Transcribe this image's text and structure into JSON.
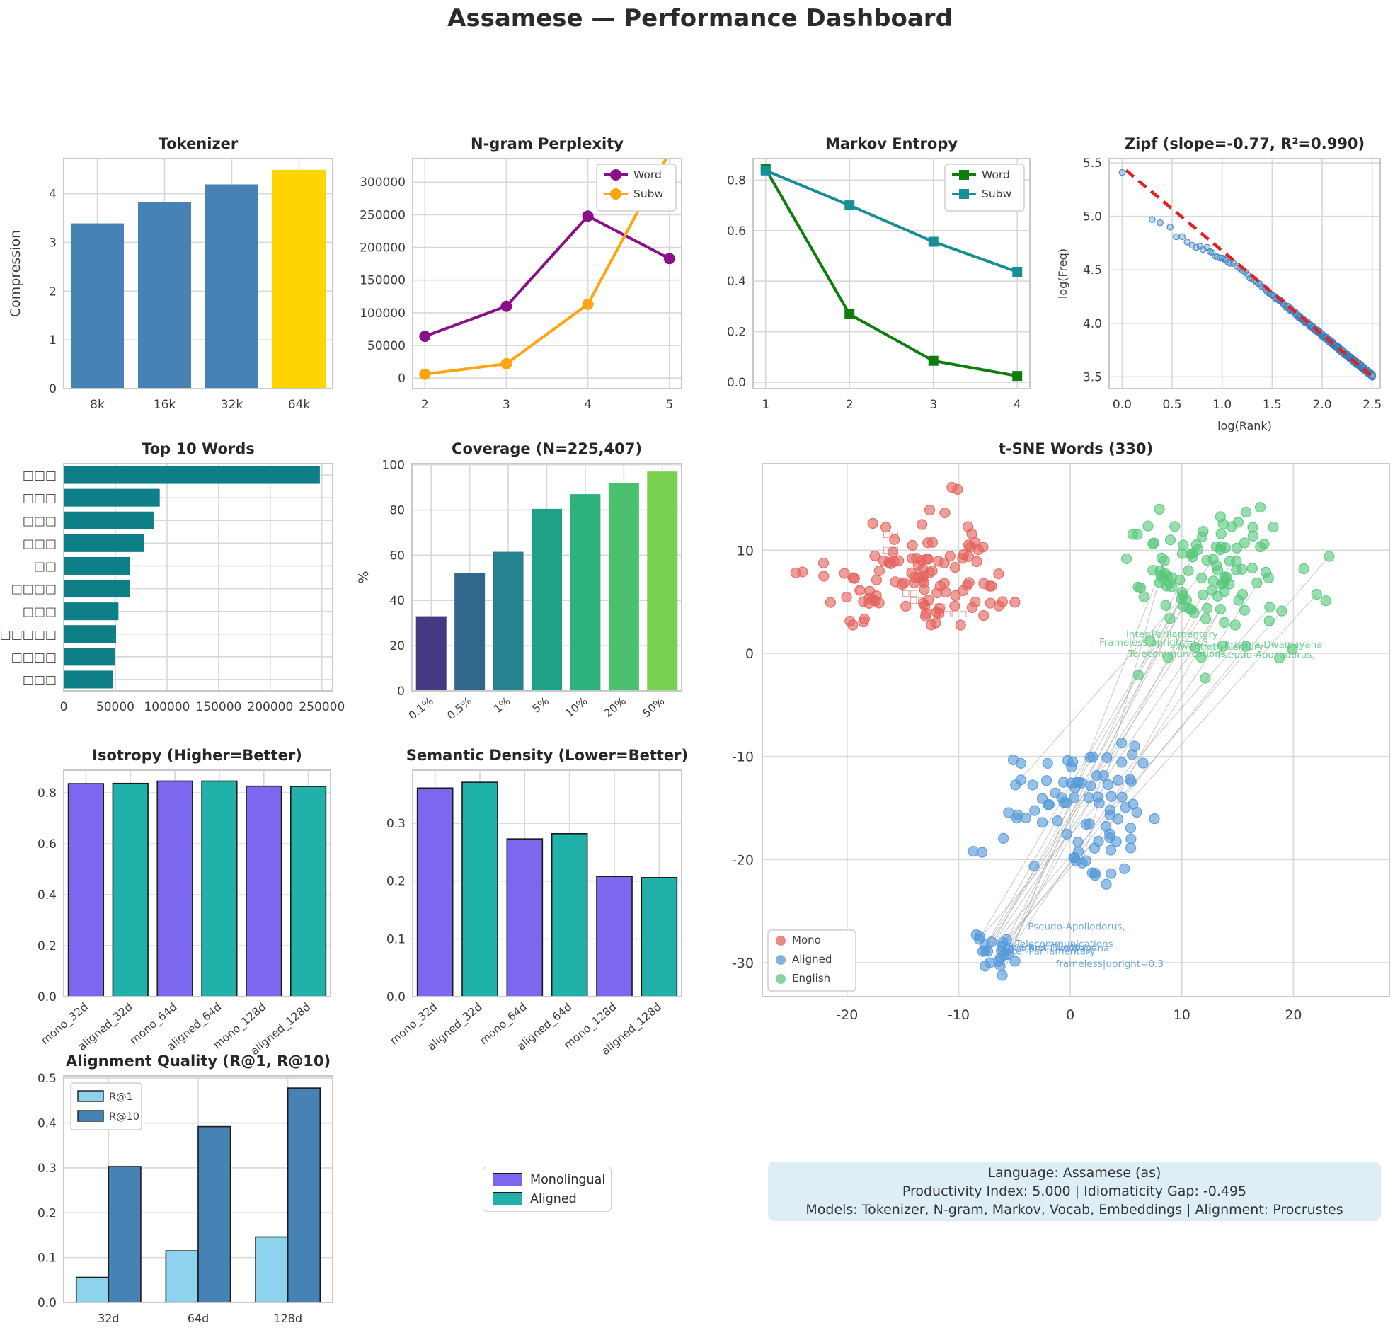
{
  "title": "Assamese — Performance Dashboard",
  "info_box": {
    "line1": "Language: Assamese (as)",
    "line2": "Productivity Index: 5.000  |  Idiomaticity Gap: -0.495",
    "line3": "Models: Tokenizer, N-gram, Markov, Vocab, Embeddings  |  Alignment: Procrustes"
  },
  "mid_legend": {
    "items": [
      {
        "label": "Monolingual",
        "color": "#7b68ee"
      },
      {
        "label": "Aligned",
        "color": "#20b2aa"
      }
    ]
  },
  "style": {
    "grid_color": "#d8d8d8",
    "frame_color": "#c9c9c9",
    "tick_color": "#3b3b3b",
    "title_color": "#262626",
    "info_bg": "#ddeef6"
  },
  "chart_data": [
    {
      "id": "tokenizer",
      "type": "bar",
      "title": "Tokenizer",
      "ylabel": "Compression",
      "categories": [
        "8k",
        "16k",
        "32k",
        "64k"
      ],
      "values": [
        3.39,
        3.82,
        4.19,
        4.49
      ],
      "bar_colors": [
        "#4682b4",
        "#4682b4",
        "#4682b4",
        "#ffd500"
      ],
      "ylim": [
        0,
        4.72
      ],
      "yticks": [
        0,
        1,
        2,
        3,
        4
      ],
      "yticklabels": [
        "0",
        "1",
        "2",
        "3",
        "4"
      ]
    },
    {
      "id": "ngram",
      "type": "line",
      "title": "N-gram Perplexity",
      "x": [
        2,
        3,
        4,
        5
      ],
      "xlim": [
        1.85,
        5.15
      ],
      "xticks": [
        2,
        3,
        4,
        5
      ],
      "xticklabels": [
        "2",
        "3",
        "4",
        "5"
      ],
      "ylim": [
        -16000,
        336000
      ],
      "yticks": [
        0,
        50000,
        100000,
        150000,
        200000,
        250000,
        300000
      ],
      "yticklabels": [
        "0",
        "50000",
        "100000",
        "150000",
        "200000",
        "250000",
        "300000"
      ],
      "series": [
        {
          "name": "Word",
          "color": "#8a0f8a",
          "marker": "circle",
          "values": [
            64000,
            110000,
            248000,
            183000
          ]
        },
        {
          "name": "Subw",
          "color": "#ffa510",
          "marker": "circle",
          "values": [
            6000,
            22000,
            113000,
            345000
          ]
        }
      ],
      "legend_pos": "top-right"
    },
    {
      "id": "markov",
      "type": "line",
      "title": "Markov Entropy",
      "x": [
        1,
        2,
        3,
        4
      ],
      "xlim": [
        0.85,
        4.15
      ],
      "xticks": [
        1,
        2,
        3,
        4
      ],
      "xticklabels": [
        "1",
        "2",
        "3",
        "4"
      ],
      "ylim": [
        -0.025,
        0.885
      ],
      "yticks": [
        0,
        0.2,
        0.4,
        0.6,
        0.8
      ],
      "yticklabels": [
        "0.0",
        "0.2",
        "0.4",
        "0.6",
        "0.8"
      ],
      "series": [
        {
          "name": "Word",
          "color": "#0e7c0e",
          "marker": "square",
          "values": [
            0.844,
            0.269,
            0.085,
            0.025
          ]
        },
        {
          "name": "Subw",
          "color": "#178f96",
          "marker": "square",
          "values": [
            0.838,
            0.7,
            0.556,
            0.437
          ]
        }
      ],
      "legend_pos": "top-right"
    },
    {
      "id": "zipf",
      "type": "zipf",
      "title": "Zipf (slope=-0.77, R²=0.990)",
      "xlabel": "log(Rank)",
      "ylabel": "log(Freq)",
      "xlim": [
        -0.13,
        2.58
      ],
      "ylim": [
        3.39,
        5.54
      ],
      "xticks": [
        0,
        0.5,
        1,
        1.5,
        2,
        2.5
      ],
      "xticklabels": [
        "0.0",
        "0.5",
        "1.0",
        "1.5",
        "2.0",
        "2.5"
      ],
      "yticks": [
        3.5,
        4,
        4.5,
        5,
        5.5
      ],
      "yticklabels": [
        "3.5",
        "4.0",
        "4.5",
        "5.0",
        "5.5"
      ],
      "point_color": "#74add6",
      "point_edge": "#3a7ab8",
      "fit_color": "#e62020",
      "fit": {
        "x1": 0.04,
        "y1": 5.43,
        "x2": 2.52,
        "y2": 3.49
      },
      "head_points": [
        [
          0,
          5.41
        ],
        [
          0.3,
          4.97
        ],
        [
          0.38,
          4.94
        ],
        [
          0.48,
          4.9
        ],
        [
          0.54,
          4.81
        ],
        [
          0.6,
          4.81
        ],
        [
          0.65,
          4.76
        ],
        [
          0.7,
          4.73
        ],
        [
          0.74,
          4.71
        ],
        [
          0.78,
          4.72
        ],
        [
          0.81,
          4.69
        ],
        [
          0.85,
          4.71
        ],
        [
          0.88,
          4.67
        ],
        [
          0.9,
          4.66
        ],
        [
          0.93,
          4.63
        ],
        [
          0.95,
          4.62
        ],
        [
          0.98,
          4.61
        ],
        [
          1.0,
          4.61
        ],
        [
          1.02,
          4.6
        ],
        [
          1.04,
          4.59
        ],
        [
          1.06,
          4.57
        ],
        [
          1.08,
          4.56
        ]
      ],
      "tail": {
        "from_rank": 13,
        "to_rank": 320,
        "intercept": 5.4,
        "slope": -0.755,
        "noise": 0.03,
        "seed": 11
      }
    },
    {
      "id": "top10",
      "type": "hbar",
      "title": "Top 10 Words",
      "categories": [
        "□□□",
        "□□□",
        "□□□",
        "□□□",
        "□□",
        "□□□□",
        "□□□",
        "□□□□□□",
        "□□□□",
        "□□□"
      ],
      "values": [
        248000,
        93000,
        87000,
        77500,
        64000,
        63800,
        53000,
        50700,
        49300,
        47500
      ],
      "bar_color": "#0e7f86",
      "xlim": [
        0,
        260400
      ],
      "xticks": [
        0,
        50000,
        100000,
        150000,
        200000,
        250000
      ],
      "xticklabels": [
        "0",
        "50000",
        "100000",
        "150000",
        "200000",
        "250000"
      ]
    },
    {
      "id": "coverage",
      "type": "bar",
      "title": "Coverage (N=225,407)",
      "ylabel": "%",
      "categories": [
        "0.1%",
        "0.5%",
        "1%",
        "5%",
        "10%",
        "20%",
        "50%"
      ],
      "values": [
        33,
        52,
        61.5,
        80.5,
        87,
        92,
        97
      ],
      "bar_colors": [
        "#443a83",
        "#31688e",
        "#26828e",
        "#1fa188",
        "#2db27d",
        "#4ac16d",
        "#7ad151"
      ],
      "ylim": [
        0,
        100.5
      ],
      "yticks": [
        0,
        20,
        40,
        60,
        80,
        100
      ],
      "yticklabels": [
        "0",
        "20",
        "40",
        "60",
        "80",
        "100"
      ],
      "rotate_labels": true
    },
    {
      "id": "tsne",
      "type": "tsne",
      "title": "t-SNE Words (330)",
      "xlim": [
        -27.6,
        28.6
      ],
      "ylim": [
        -33.3,
        18.4
      ],
      "xticks": [
        -20,
        -10,
        0,
        10,
        20
      ],
      "xticklabels": [
        "-20",
        "-10",
        "0",
        "10",
        "20"
      ],
      "yticks": [
        -30,
        -20,
        -10,
        0,
        10
      ],
      "yticklabels": [
        "-30",
        "-20",
        "-10",
        "0",
        "10"
      ],
      "legend": [
        {
          "label": "Mono",
          "color": "#e4635c"
        },
        {
          "label": "Aligned",
          "color": "#5599d8"
        },
        {
          "label": "English",
          "color": "#58c87d"
        }
      ],
      "clusters": [
        {
          "name": "Mono",
          "color": "#e4635c",
          "n": 103,
          "cx": -13.5,
          "cy": 7.2,
          "sx": 4.3,
          "sy": 2.9,
          "xr": [
            -25.5,
            -3.6
          ],
          "yr": [
            1.6,
            13.8
          ],
          "seed": 5,
          "extra": [
            [
              -10.6,
              16.1
            ],
            [
              -10.1,
              15.9
            ],
            [
              -12.6,
              13.9
            ],
            [
              -24.6,
              7.8
            ],
            [
              -24.0,
              7.9
            ],
            [
              -17.7,
              12.6
            ]
          ]
        },
        {
          "name": "Aligned",
          "color": "#5599d8",
          "n": 85,
          "cx": 1.2,
          "cy": -15.6,
          "sx": 3.9,
          "sy": 3.6,
          "xr": [
            -6.2,
            7.6
          ],
          "yr": [
            -23.4,
            -8.6
          ],
          "seed": 6,
          "extra": [
            [
              -8.7,
              -19.2
            ],
            [
              -7.9,
              -19.3
            ],
            [
              4.6,
              -8.7
            ]
          ]
        },
        {
          "name": "AlignedDense",
          "color": "#5599d8",
          "n": 22,
          "cx": -6.9,
          "cy": -29.0,
          "sx": 1.0,
          "sy": 1.1,
          "xr": [
            -9.0,
            -4.6
          ],
          "yr": [
            -31.4,
            -26.6
          ],
          "seed": 7,
          "extra": []
        },
        {
          "name": "English",
          "color": "#58c87d",
          "n": 108,
          "cx": 12.6,
          "cy": 7.2,
          "sx": 4.4,
          "sy": 3.3,
          "xr": [
            3.6,
            23.4
          ],
          "yr": [
            -2.4,
            15.4
          ],
          "seed": 8,
          "extra": [
            [
              23.2,
              9.4
            ],
            [
              22.9,
              5.1
            ],
            [
              19.9,
              0.4
            ],
            [
              6.1,
              -2.1
            ],
            [
              12.1,
              -2.4
            ]
          ]
        }
      ],
      "link_lines": {
        "count": 16,
        "extra_from_main": 3,
        "seed": 99,
        "color": "#9a9a9a"
      },
      "annotations": {
        "green": [
          [
            5.0,
            1.55,
            "Inter-Parliamentary"
          ],
          [
            2.6,
            0.75,
            "Frameless|upright=0.3"
          ],
          [
            9.5,
            0.35,
            "Twentieth-Century"
          ],
          [
            5.2,
            -0.35,
            "Telecommunications"
          ],
          [
            13.8,
            0.55,
            "Krishna-Dwaipayana"
          ],
          [
            13.2,
            -0.45,
            "Pseudo-Apollodorus,"
          ]
        ],
        "blue": [
          [
            -3.8,
            -26.8,
            "Pseudo-Apollodorus,"
          ],
          [
            -4.9,
            -28.5,
            "Telecommunications"
          ],
          [
            -5.7,
            -28.8,
            "Twentieth-Century"
          ],
          [
            -5.3,
            -28.9,
            "Krishna-Dwaipayana"
          ],
          [
            -6.0,
            -29.2,
            "Inter-Parliamentary"
          ],
          [
            -1.3,
            -30.4,
            "frameless|upright=0.3"
          ]
        ],
        "red": [
          [
            -16.8,
            11.3,
            "□□"
          ],
          [
            -16.8,
            9.8,
            "□□"
          ],
          [
            -19.2,
            5.9,
            "□"
          ],
          [
            -15.1,
            5.6,
            "□□"
          ],
          [
            -14.4,
            4.9,
            "□□"
          ],
          [
            -13.3,
            4.3,
            "□□□"
          ],
          [
            -11.4,
            3.6,
            "□□□"
          ]
        ]
      }
    },
    {
      "id": "isotropy",
      "type": "bar",
      "title": "Isotropy (Higher=Better)",
      "categories": [
        "mono_32d",
        "aligned_32d",
        "mono_64d",
        "aligned_64d",
        "mono_128d",
        "aligned_128d"
      ],
      "values": [
        0.836,
        0.837,
        0.846,
        0.846,
        0.826,
        0.825
      ],
      "bar_colors": [
        "#7b68ee",
        "#20b2aa",
        "#7b68ee",
        "#20b2aa",
        "#7b68ee",
        "#20b2aa"
      ],
      "edge": "#1a1a1a",
      "ylim": [
        0,
        0.889
      ],
      "yticks": [
        0,
        0.2,
        0.4,
        0.6,
        0.8
      ],
      "yticklabels": [
        "0.0",
        "0.2",
        "0.4",
        "0.6",
        "0.8"
      ],
      "rotate_labels": true
    },
    {
      "id": "semantic",
      "type": "bar",
      "title": "Semantic Density (Lower=Better)",
      "categories": [
        "mono_32d",
        "aligned_32d",
        "mono_64d",
        "aligned_64d",
        "mono_128d",
        "aligned_128d"
      ],
      "values": [
        0.361,
        0.371,
        0.273,
        0.282,
        0.208,
        0.206
      ],
      "bar_colors": [
        "#7b68ee",
        "#20b2aa",
        "#7b68ee",
        "#20b2aa",
        "#7b68ee",
        "#20b2aa"
      ],
      "edge": "#1a1a1a",
      "ylim": [
        0,
        0.392
      ],
      "yticks": [
        0,
        0.1,
        0.2,
        0.3
      ],
      "yticklabels": [
        "0.0",
        "0.1",
        "0.2",
        "0.3"
      ],
      "rotate_labels": true
    },
    {
      "id": "alignment",
      "type": "groupbar",
      "title": "Alignment Quality (R@1, R@10)",
      "categories": [
        "32d",
        "64d",
        "128d"
      ],
      "series": [
        {
          "name": "R@1",
          "color": "#8ed3ee",
          "values": [
            0.056,
            0.115,
            0.146
          ]
        },
        {
          "name": "R@10",
          "color": "#4682b4",
          "values": [
            0.303,
            0.392,
            0.478
          ]
        }
      ],
      "edge": "#1a1a1a",
      "ylim": [
        0,
        0.505
      ],
      "yticks": [
        0,
        0.1,
        0.2,
        0.3,
        0.4,
        0.5
      ],
      "yticklabels": [
        "0.0",
        "0.1",
        "0.2",
        "0.3",
        "0.4",
        "0.5"
      ],
      "legend_pos": "top-left"
    }
  ]
}
